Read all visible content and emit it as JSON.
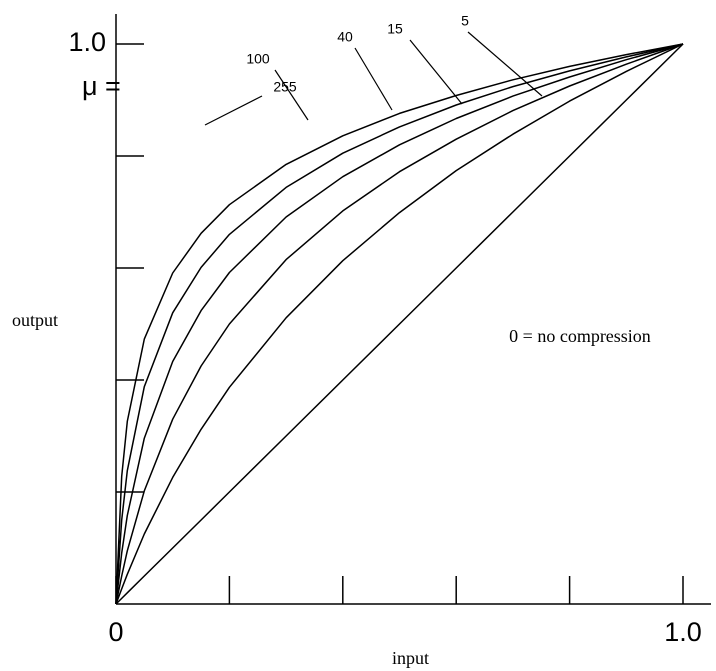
{
  "chart_data": {
    "type": "line",
    "annotation": "μ =",
    "xlabel": "input",
    "ylabel": "output",
    "x": [
      0,
      0.01,
      0.02,
      0.05,
      0.1,
      0.15,
      0.2,
      0.3,
      0.4,
      0.5,
      0.6,
      0.7,
      0.8,
      0.9,
      1.0
    ],
    "series": [
      {
        "name": "255",
        "color": "#000000",
        "values": [
          0,
          0.228,
          0.326,
          0.473,
          0.591,
          0.662,
          0.713,
          0.785,
          0.836,
          0.876,
          0.908,
          0.936,
          0.96,
          0.981,
          1.0
        ]
      },
      {
        "name": "100",
        "color": "#000000",
        "values": [
          0,
          0.15,
          0.238,
          0.388,
          0.52,
          0.601,
          0.66,
          0.744,
          0.805,
          0.852,
          0.891,
          0.924,
          0.952,
          0.977,
          1.0
        ]
      },
      {
        "name": "40",
        "color": "#000000",
        "values": [
          0,
          0.091,
          0.158,
          0.296,
          0.433,
          0.524,
          0.592,
          0.691,
          0.763,
          0.82,
          0.867,
          0.907,
          0.941,
          0.972,
          1.0
        ]
      },
      {
        "name": "15",
        "color": "#000000",
        "values": [
          0,
          0.05,
          0.095,
          0.202,
          0.33,
          0.425,
          0.5,
          0.615,
          0.702,
          0.772,
          0.83,
          0.881,
          0.925,
          0.964,
          1.0
        ]
      },
      {
        "name": "5",
        "color": "#000000",
        "values": [
          0,
          0.027,
          0.053,
          0.125,
          0.226,
          0.312,
          0.387,
          0.511,
          0.613,
          0.699,
          0.774,
          0.839,
          0.898,
          0.951,
          1.0
        ]
      },
      {
        "name": "0 = no compression",
        "color": "#000000",
        "values": [
          0,
          0.01,
          0.02,
          0.05,
          0.1,
          0.15,
          0.2,
          0.3,
          0.4,
          0.5,
          0.6,
          0.7,
          0.8,
          0.9,
          1.0
        ]
      }
    ],
    "xlim": [
      0,
      1.05
    ],
    "ylim": [
      0,
      1.05
    ],
    "xticks": [
      0,
      {
        "value": 1,
        "label": "1.0"
      }
    ],
    "yticks": [
      {
        "value": 1,
        "label": "1.0"
      }
    ],
    "xminor_ticks": [
      0.2,
      0.4,
      0.6,
      0.8
    ],
    "yminor_ticks": [
      0.2,
      0.4,
      0.6,
      0.8
    ]
  }
}
